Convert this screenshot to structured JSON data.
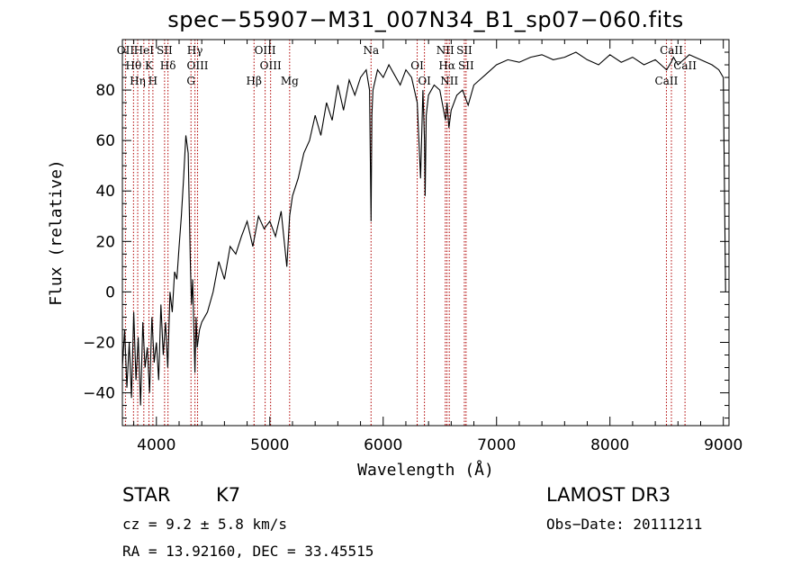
{
  "chart_data": {
    "type": "line",
    "title": "spec−55907−M31_007N34_B1_sp07−060.fits",
    "xlabel": "Wavelength (Å)",
    "ylabel": "Flux (relative)",
    "xlim": [
      3700,
      9050
    ],
    "ylim": [
      -53,
      100
    ],
    "xticks": [
      4000,
      5000,
      6000,
      7000,
      8000,
      9000
    ],
    "xtick_labels": [
      "4000",
      "5000",
      "6000",
      "7000",
      "8000",
      "9000"
    ],
    "yticks": [
      -40,
      -20,
      0,
      20,
      40,
      60,
      80
    ],
    "ytick_labels": [
      "−40",
      "−20",
      "0",
      "20",
      "40",
      "60",
      "80"
    ],
    "series": [
      {
        "name": "spectrum",
        "x": [
          3700,
          3720,
          3740,
          3760,
          3780,
          3800,
          3820,
          3840,
          3860,
          3880,
          3900,
          3920,
          3940,
          3960,
          3980,
          4000,
          4020,
          4040,
          4060,
          4080,
          4100,
          4120,
          4140,
          4160,
          4180,
          4200,
          4220,
          4240,
          4260,
          4280,
          4300,
          4310,
          4320,
          4330,
          4340,
          4350,
          4360,
          4380,
          4400,
          4450,
          4500,
          4550,
          4600,
          4650,
          4700,
          4750,
          4800,
          4850,
          4900,
          4950,
          5000,
          5050,
          5100,
          5150,
          5175,
          5200,
          5250,
          5300,
          5350,
          5400,
          5450,
          5500,
          5550,
          5600,
          5650,
          5700,
          5750,
          5800,
          5850,
          5880,
          5893,
          5900,
          5910,
          5950,
          6000,
          6050,
          6100,
          6150,
          6200,
          6250,
          6300,
          6330,
          6350,
          6365,
          6370,
          6380,
          6400,
          6450,
          6500,
          6550,
          6563,
          6580,
          6600,
          6650,
          6700,
          6750,
          6800,
          6850,
          6900,
          7000,
          7100,
          7200,
          7300,
          7400,
          7500,
          7600,
          7700,
          7800,
          7900,
          8000,
          8100,
          8200,
          8300,
          8400,
          8500,
          8540,
          8560,
          8600,
          8650,
          8700,
          8800,
          8900,
          8960,
          9000,
          9010,
          9020
        ],
        "y": [
          -30,
          -15,
          -38,
          -20,
          -42,
          -8,
          -35,
          -18,
          -45,
          -12,
          -30,
          -22,
          -40,
          -10,
          -28,
          -20,
          -35,
          -5,
          -25,
          -12,
          -30,
          0,
          -8,
          8,
          5,
          18,
          30,
          45,
          62,
          55,
          10,
          -5,
          5,
          -15,
          -32,
          -10,
          -22,
          -15,
          -12,
          -8,
          0,
          12,
          5,
          18,
          15,
          22,
          28,
          18,
          30,
          25,
          28,
          22,
          32,
          10,
          30,
          38,
          45,
          55,
          60,
          70,
          62,
          75,
          68,
          82,
          72,
          84,
          78,
          85,
          88,
          80,
          28,
          70,
          80,
          88,
          85,
          90,
          86,
          82,
          88,
          85,
          75,
          45,
          80,
          60,
          38,
          70,
          78,
          82,
          80,
          68,
          75,
          65,
          72,
          78,
          80,
          74,
          82,
          84,
          86,
          90,
          92,
          91,
          93,
          94,
          92,
          93,
          95,
          92,
          90,
          94,
          91,
          93,
          90,
          92,
          88,
          91,
          93,
          90,
          92,
          94,
          92,
          90,
          88,
          85,
          40,
          0
        ],
        "color": "#000000"
      }
    ],
    "line_markers": [
      {
        "name": "O II",
        "wavelength": 3727,
        "label": "OII"
      },
      {
        "name": "H theta",
        "wavelength": 3798,
        "label": "Hθ"
      },
      {
        "name": "H eta",
        "wavelength": 3835,
        "label": "Hη"
      },
      {
        "name": "He I",
        "wavelength": 3889,
        "label": "HeI"
      },
      {
        "name": "K",
        "wavelength": 3934,
        "label": "K"
      },
      {
        "name": "H",
        "wavelength": 3969,
        "label": "H"
      },
      {
        "name": "S II",
        "wavelength": 4072,
        "label": "SII"
      },
      {
        "name": "H delta",
        "wavelength": 4102,
        "label": "Hδ"
      },
      {
        "name": "G",
        "wavelength": 4305,
        "label": "G"
      },
      {
        "name": "H gamma",
        "wavelength": 4340,
        "label": "Hγ"
      },
      {
        "name": "O III 4363",
        "wavelength": 4363,
        "label": "OIII"
      },
      {
        "name": "H beta",
        "wavelength": 4861,
        "label": "Hβ"
      },
      {
        "name": "O III 4959",
        "wavelength": 4959,
        "label": "OIII"
      },
      {
        "name": "O III 5007",
        "wavelength": 5007,
        "label": "OIII"
      },
      {
        "name": "Mg",
        "wavelength": 5175,
        "label": "Mg"
      },
      {
        "name": "Na",
        "wavelength": 5893,
        "label": "Na"
      },
      {
        "name": "O I 6300",
        "wavelength": 6300,
        "label": "OI"
      },
      {
        "name": "O I 6364",
        "wavelength": 6364,
        "label": "OI"
      },
      {
        "name": "N II 6548",
        "wavelength": 6548,
        "label": "NII"
      },
      {
        "name": "H alpha",
        "wavelength": 6563,
        "label": "Hα"
      },
      {
        "name": "N II 6583",
        "wavelength": 6583,
        "label": "NII"
      },
      {
        "name": "S II 6716",
        "wavelength": 6716,
        "label": "SII"
      },
      {
        "name": "S II 6731",
        "wavelength": 6731,
        "label": "SII"
      },
      {
        "name": "Ca II 8498",
        "wavelength": 8498,
        "label": "CaII"
      },
      {
        "name": "Ca II 8542",
        "wavelength": 8542,
        "label": "CaII"
      },
      {
        "name": "Ca II 8662",
        "wavelength": 8662,
        "label": "CaII"
      }
    ],
    "marker_color": "#b00000"
  },
  "info": {
    "object_class": "STAR",
    "subclass": "K7",
    "redshift": "cz =  9.2 ±  5.8 km/s",
    "coords": "RA =   13.92160, DEC =   33.45515",
    "survey": "LAMOST DR3",
    "obs_date": "Obs−Date: 20111211"
  }
}
